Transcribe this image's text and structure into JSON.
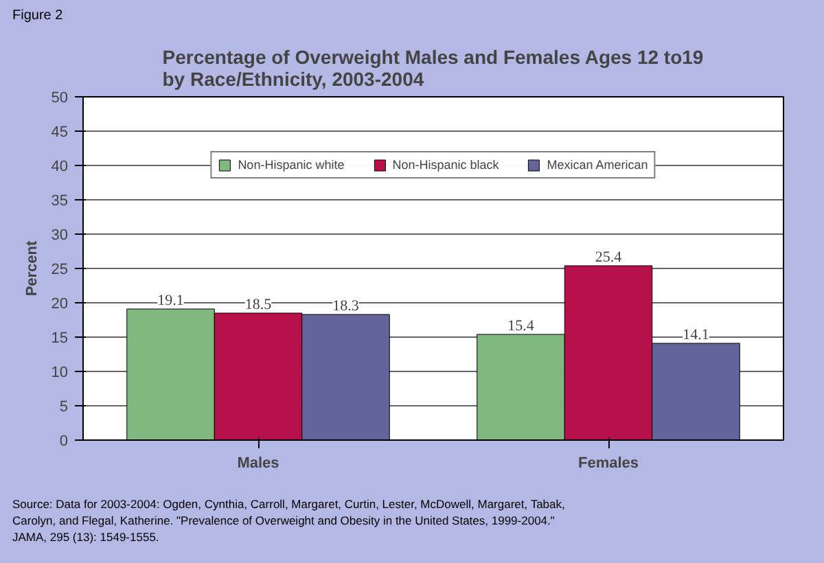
{
  "chart_data": {
    "type": "bar",
    "title": "Percentage of Overweight Males and Females Ages 12 to19 by Race/Ethnicity, 2003-2004",
    "ylabel": "Percent",
    "categories": [
      "Males",
      "Females"
    ],
    "series": [
      {
        "name": "Non-Hispanic white",
        "color": "#80b880",
        "values": [
          19.1,
          15.4
        ]
      },
      {
        "name": "Non-Hispanic black",
        "color": "#b8104a",
        "values": [
          18.5,
          25.4
        ]
      },
      {
        "name": "Mexican American",
        "color": "#64649c",
        "values": [
          18.3,
          14.1
        ]
      }
    ],
    "ylim": [
      0,
      50
    ],
    "yticks": [
      0,
      5,
      10,
      15,
      20,
      25,
      30,
      35,
      40,
      45,
      50
    ],
    "grid": "y",
    "legend": "top",
    "data_labels": true,
    "annotations": [
      "Figure 2",
      "Source: Data for 2003-2004: Ogden, Cynthia, Carroll, Margaret, Curtin, Lester, McDowell, Margaret, Tabak, Carolyn, and Flegal, Katherine. \"Prevalence of Overweight and Obesity in the United States, 1999-2004.\" JAMA, 295 (13): 1549-1555."
    ]
  }
}
